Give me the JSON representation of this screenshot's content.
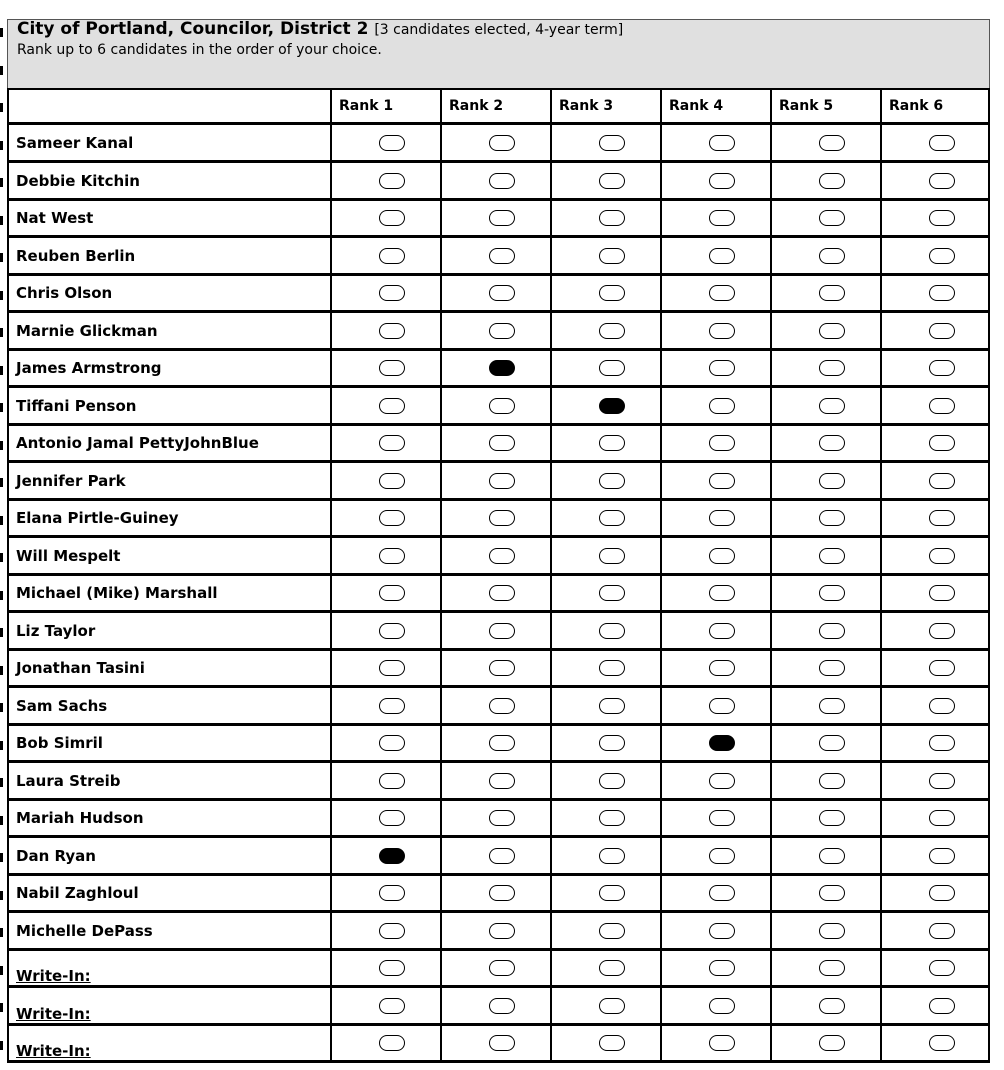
{
  "contest": {
    "title": "City of Portland, Councilor, District 2",
    "title_note": "[3 candidates elected, 4-year term]",
    "instructions": "Rank up to 6 candidates in the order of your choice."
  },
  "columns": [
    "Rank 1",
    "Rank 2",
    "Rank 3",
    "Rank 4",
    "Rank 5",
    "Rank 6"
  ],
  "candidates": [
    {
      "name": "Sameer Kanal",
      "marked_rank": null
    },
    {
      "name": "Debbie Kitchin",
      "marked_rank": null
    },
    {
      "name": "Nat West",
      "marked_rank": null
    },
    {
      "name": "Reuben Berlin",
      "marked_rank": null
    },
    {
      "name": "Chris Olson",
      "marked_rank": null
    },
    {
      "name": "Marnie Glickman",
      "marked_rank": null
    },
    {
      "name": "James Armstrong",
      "marked_rank": 2
    },
    {
      "name": "Tiffani Penson",
      "marked_rank": 3
    },
    {
      "name": "Antonio Jamal PettyJohnBlue",
      "marked_rank": null
    },
    {
      "name": "Jennifer Park",
      "marked_rank": null
    },
    {
      "name": "Elana Pirtle-Guiney",
      "marked_rank": null
    },
    {
      "name": "Will Mespelt",
      "marked_rank": null
    },
    {
      "name": "Michael (Mike) Marshall",
      "marked_rank": null
    },
    {
      "name": "Liz Taylor",
      "marked_rank": null
    },
    {
      "name": "Jonathan Tasini",
      "marked_rank": null
    },
    {
      "name": "Sam Sachs",
      "marked_rank": null
    },
    {
      "name": "Bob Simril",
      "marked_rank": 4
    },
    {
      "name": "Laura Streib",
      "marked_rank": null
    },
    {
      "name": "Mariah Hudson",
      "marked_rank": null
    },
    {
      "name": "Dan Ryan",
      "marked_rank": 1
    },
    {
      "name": "Nabil Zaghloul",
      "marked_rank": null
    },
    {
      "name": "Michelle DePass",
      "marked_rank": null
    },
    {
      "name": "Write-In:",
      "marked_rank": null,
      "write_in": true
    },
    {
      "name": "Write-In:",
      "marked_rank": null,
      "write_in": true
    },
    {
      "name": "Write-In:",
      "marked_rank": null,
      "write_in": true
    }
  ]
}
